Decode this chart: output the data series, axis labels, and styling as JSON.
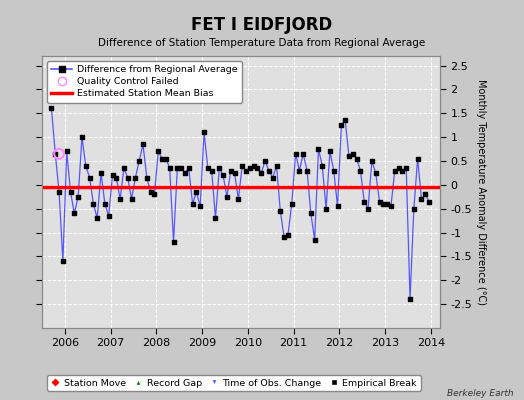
{
  "title": "FET I EIDFJORD",
  "subtitle": "Difference of Station Temperature Data from Regional Average",
  "ylabel_right": "Monthly Temperature Anomaly Difference (°C)",
  "xlim": [
    2005.5,
    2014.2
  ],
  "ylim": [
    -3.0,
    2.7
  ],
  "yticks": [
    -2.5,
    -2,
    -1.5,
    -1,
    -0.5,
    0,
    0.5,
    1,
    1.5,
    2,
    2.5
  ],
  "xticks": [
    2006,
    2007,
    2008,
    2009,
    2010,
    2011,
    2012,
    2013,
    2014
  ],
  "mean_bias": -0.05,
  "line_color": "#5555ff",
  "marker_color": "#000000",
  "bias_color": "#ff0000",
  "fig_bg_color": "#c8c8c8",
  "plot_bg_color": "#e0e0e0",
  "qc_failed_x": 2005.875,
  "qc_failed_y": 0.65,
  "watermark": "Berkeley Earth",
  "data_x": [
    2005.708,
    2005.792,
    2005.875,
    2005.958,
    2006.042,
    2006.125,
    2006.208,
    2006.292,
    2006.375,
    2006.458,
    2006.542,
    2006.625,
    2006.708,
    2006.792,
    2006.875,
    2006.958,
    2007.042,
    2007.125,
    2007.208,
    2007.292,
    2007.375,
    2007.458,
    2007.542,
    2007.625,
    2007.708,
    2007.792,
    2007.875,
    2007.958,
    2008.042,
    2008.125,
    2008.208,
    2008.292,
    2008.375,
    2008.458,
    2008.542,
    2008.625,
    2008.708,
    2008.792,
    2008.875,
    2008.958,
    2009.042,
    2009.125,
    2009.208,
    2009.292,
    2009.375,
    2009.458,
    2009.542,
    2009.625,
    2009.708,
    2009.792,
    2009.875,
    2009.958,
    2010.042,
    2010.125,
    2010.208,
    2010.292,
    2010.375,
    2010.458,
    2010.542,
    2010.625,
    2010.708,
    2010.792,
    2010.875,
    2010.958,
    2011.042,
    2011.125,
    2011.208,
    2011.292,
    2011.375,
    2011.458,
    2011.542,
    2011.625,
    2011.708,
    2011.792,
    2011.875,
    2011.958,
    2012.042,
    2012.125,
    2012.208,
    2012.292,
    2012.375,
    2012.458,
    2012.542,
    2012.625,
    2012.708,
    2012.792,
    2012.875,
    2012.958,
    2013.042,
    2013.125,
    2013.208,
    2013.292,
    2013.375,
    2013.458,
    2013.542,
    2013.625,
    2013.708,
    2013.792,
    2013.875,
    2013.958
  ],
  "data_y": [
    1.6,
    0.65,
    -0.15,
    -1.6,
    0.7,
    -0.15,
    -0.6,
    -0.25,
    1.0,
    0.4,
    0.15,
    -0.4,
    -0.7,
    0.25,
    -0.4,
    -0.65,
    0.2,
    0.15,
    -0.3,
    0.35,
    0.15,
    -0.3,
    0.15,
    0.5,
    0.85,
    0.15,
    -0.15,
    -0.2,
    0.7,
    0.55,
    0.55,
    0.35,
    -1.2,
    0.35,
    0.35,
    0.25,
    0.35,
    -0.4,
    -0.15,
    -0.45,
    1.1,
    0.35,
    0.3,
    -0.7,
    0.35,
    0.2,
    -0.25,
    0.3,
    0.25,
    -0.3,
    0.4,
    0.3,
    0.35,
    0.4,
    0.35,
    0.25,
    0.5,
    0.3,
    0.15,
    0.4,
    -0.55,
    -1.1,
    -1.05,
    -0.4,
    0.65,
    0.3,
    0.65,
    0.3,
    -0.6,
    -1.15,
    0.75,
    0.4,
    -0.5,
    0.7,
    0.3,
    -0.45,
    1.25,
    1.35,
    0.6,
    0.65,
    0.55,
    0.3,
    -0.35,
    -0.5,
    0.5,
    0.25,
    -0.35,
    -0.4,
    -0.4,
    -0.45,
    0.3,
    0.35,
    0.3,
    0.35,
    -2.4,
    -0.5,
    0.55,
    -0.3,
    -0.2,
    -0.35
  ]
}
